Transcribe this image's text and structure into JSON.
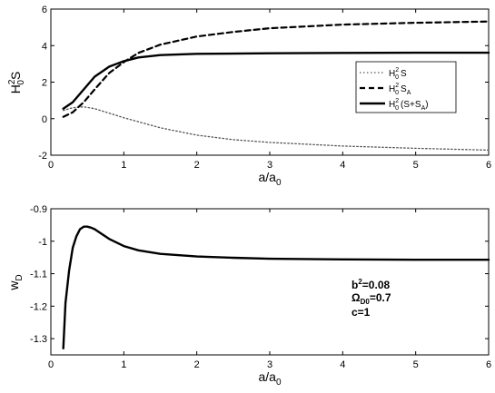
{
  "chart_data": [
    {
      "type": "line",
      "xlabel": "a/a",
      "xlabel_sub": "0",
      "ylabel": "H",
      "ylabel_sup": "2",
      "ylabel_sub": "0",
      "ylabel_tail": "S",
      "xlim": [
        0,
        6
      ],
      "ylim": [
        -2,
        6
      ],
      "xticks": [
        0,
        1,
        2,
        3,
        4,
        5,
        6
      ],
      "yticks": [
        -2,
        0,
        2,
        4,
        6
      ],
      "legend_position": "right",
      "series": [
        {
          "name": "H²₀S",
          "legend": {
            "base": "H",
            "sup": "2",
            "sub": "0",
            "tail": "S",
            "tail_sub": ""
          },
          "style": "dotted",
          "x": [
            0.17,
            0.3,
            0.45,
            0.6,
            0.8,
            1.0,
            1.5,
            2.0,
            2.5,
            3.0,
            4.0,
            5.0,
            6.0
          ],
          "y": [
            0.45,
            0.6,
            0.65,
            0.55,
            0.3,
            0.05,
            -0.5,
            -0.9,
            -1.15,
            -1.3,
            -1.5,
            -1.62,
            -1.72
          ]
        },
        {
          "name": "H²₀Sₐ",
          "legend": {
            "base": "H",
            "sup": "2",
            "sub": "0",
            "tail": "S",
            "tail_sub": "A"
          },
          "style": "dashed",
          "x": [
            0.17,
            0.3,
            0.45,
            0.6,
            0.8,
            1.0,
            1.2,
            1.5,
            2.0,
            2.5,
            3.0,
            4.0,
            5.0,
            6.0
          ],
          "y": [
            0.1,
            0.35,
            0.9,
            1.6,
            2.5,
            3.1,
            3.6,
            4.05,
            4.5,
            4.75,
            4.95,
            5.15,
            5.25,
            5.32
          ]
        },
        {
          "name": "H²₀(S+Sₐ)",
          "legend": {
            "base": "H",
            "sup": "2",
            "sub": "0",
            "tail": "(S+S",
            "tail_sub": "A",
            "tail_end": ")"
          },
          "style": "solid",
          "x": [
            0.17,
            0.3,
            0.45,
            0.6,
            0.8,
            1.0,
            1.2,
            1.5,
            2.0,
            3.0,
            4.0,
            5.0,
            6.0
          ],
          "y": [
            0.55,
            0.9,
            1.6,
            2.3,
            2.85,
            3.15,
            3.35,
            3.48,
            3.55,
            3.58,
            3.6,
            3.61,
            3.61
          ]
        }
      ]
    },
    {
      "type": "line",
      "xlabel": "a/a",
      "xlabel_sub": "0",
      "ylabel": "w",
      "ylabel_sub": "D",
      "xlim": [
        0,
        6
      ],
      "ylim": [
        -1.35,
        -0.9
      ],
      "xticks": [
        0,
        1,
        2,
        3,
        4,
        5,
        6
      ],
      "yticks": [
        -1.3,
        -1.2,
        -1.1,
        -1.0,
        -0.9
      ],
      "ytick_labels": [
        "-1.3",
        "-1.2",
        "-1.1",
        "-1",
        "-0.9"
      ],
      "series": [
        {
          "style": "solid",
          "x": [
            0.17,
            0.2,
            0.25,
            0.3,
            0.35,
            0.4,
            0.45,
            0.5,
            0.55,
            0.6,
            0.7,
            0.8,
            1.0,
            1.2,
            1.5,
            2.0,
            2.5,
            3.0,
            4.0,
            5.0,
            6.0
          ],
          "y": [
            -1.33,
            -1.19,
            -1.09,
            -1.02,
            -0.985,
            -0.963,
            -0.955,
            -0.955,
            -0.958,
            -0.963,
            -0.978,
            -0.993,
            -1.015,
            -1.028,
            -1.039,
            -1.047,
            -1.051,
            -1.054,
            -1.056,
            -1.057,
            -1.057
          ]
        }
      ],
      "annotations": {
        "b": {
          "base": "b",
          "sup": "2",
          "rest": "=0.08"
        },
        "omega": {
          "base": "Ω",
          "sub": "D0",
          "rest": "=0.7"
        },
        "c": "c=1"
      }
    }
  ]
}
